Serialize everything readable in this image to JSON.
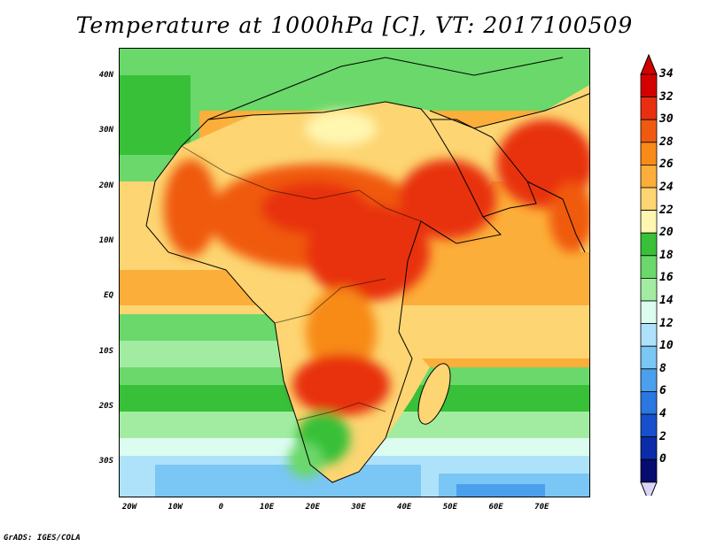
{
  "title": "Temperature at 1000hPa [C], VT: 2017100509",
  "credit": "GrADS: IGES/COLA",
  "map": {
    "lat_labels": [
      "40N",
      "30N",
      "20N",
      "10N",
      "EQ",
      "10S",
      "20S",
      "30S"
    ],
    "lon_labels": [
      "20W",
      "10W",
      "0",
      "10E",
      "20E",
      "30E",
      "40E",
      "50E",
      "60E",
      "70E"
    ]
  },
  "colorbar": {
    "labels": [
      "34",
      "32",
      "30",
      "28",
      "26",
      "24",
      "22",
      "20",
      "18",
      "16",
      "14",
      "12",
      "10",
      "8",
      "6",
      "4",
      "2",
      "0"
    ],
    "colors": [
      "#d40000",
      "#e83010",
      "#f05a10",
      "#f88a18",
      "#fcae3a",
      "#fdd572",
      "#fff6b0",
      "#38c038",
      "#6ad86a",
      "#a2eca2",
      "#dcfcf0",
      "#aee2fa",
      "#7ac6f4",
      "#4aa0ec",
      "#2a78e0",
      "#1650cc",
      "#0a2ca8",
      "#060c70"
    ],
    "over_color": "#d40000",
    "under_color": "#dcd4f8"
  },
  "colors": {
    "ocean_warm": "#fcae3a",
    "land_hot": "#e83010",
    "coast": "#000000"
  }
}
